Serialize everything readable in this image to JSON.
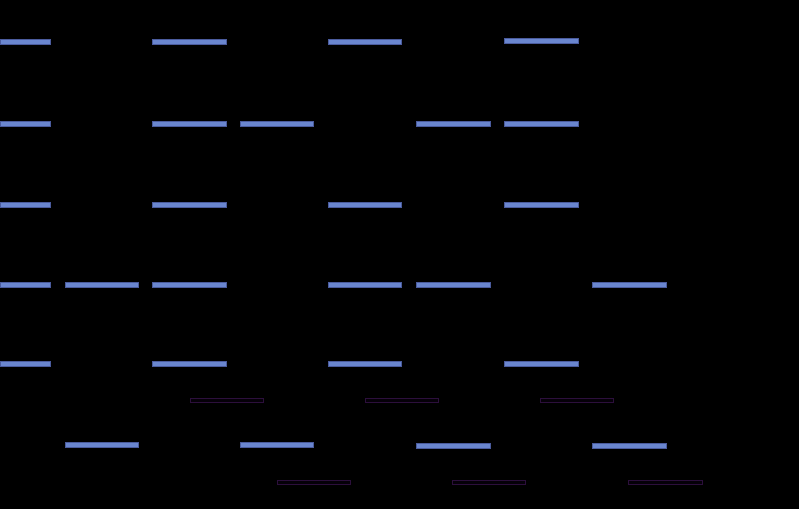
{
  "game": {
    "colors": {
      "background": "#000000",
      "platform_fill": "#6a86cf",
      "platform_border": "#4b5c9e",
      "ghost_platform_border": "#2c0f3c"
    },
    "platform_kinds": [
      "solid-platform",
      "ghost-platform"
    ]
  }
}
